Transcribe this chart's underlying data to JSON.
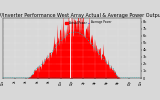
{
  "title": "Solar PV/Inverter Performance West Array Actual & Average Power Output",
  "title_fontsize": 3.5,
  "bg_color": "#d8d8d8",
  "plot_bg": "#d8d8d8",
  "bar_color": "#ff0000",
  "avg_color": "#0000ff",
  "grid_color": "#888888",
  "ytick_labels": [
    "8k",
    "7k",
    "6k",
    "5k",
    "4k",
    "3k",
    "2k",
    "1k",
    "0"
  ],
  "ytick_vals": [
    8000,
    7000,
    6000,
    5000,
    4000,
    3000,
    2000,
    1000,
    0
  ],
  "ylim": [
    0,
    8500
  ],
  "xlim": [
    0,
    288
  ],
  "n_points": 288,
  "peak_x": 150,
  "peak_y": 7800,
  "avg_peak_y": 6500,
  "white_line_x": 140,
  "legend_labels": [
    "Actual Power  --",
    "Average Power"
  ],
  "legend_colors": [
    "#ff0000",
    "#0000ff"
  ],
  "xtick_positions": [
    0,
    24,
    48,
    72,
    96,
    120,
    144,
    168,
    192,
    216,
    240,
    264,
    288
  ],
  "xtick_labels": [
    "12a",
    "2a",
    "4a",
    "6a",
    "8a",
    "10a",
    "12p",
    "2p",
    "4p",
    "6p",
    "8p",
    "10p",
    "12a"
  ]
}
